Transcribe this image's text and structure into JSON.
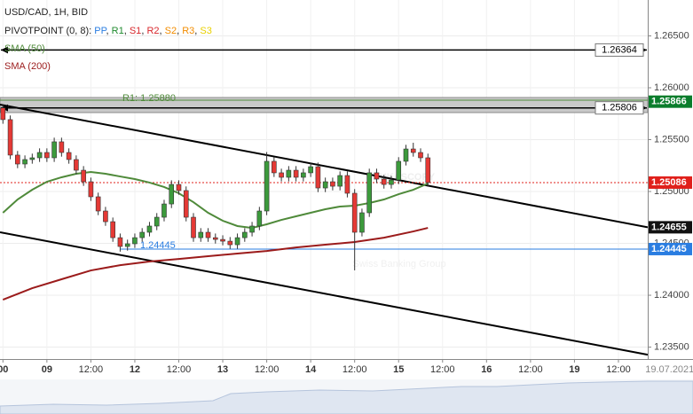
{
  "chart_data": {
    "type": "candlestick",
    "title": "USD/CAD, 1H, BID",
    "pivot_prefix": "PIVOTPOINT (0, 8): ",
    "pivot_names": [
      {
        "name": "PP",
        "color": "#2a7de1"
      },
      {
        "name": "R1",
        "color": "#1f8a2e"
      },
      {
        "name": "S1",
        "color": "#d8262b"
      },
      {
        "name": "R2",
        "color": "#d8262b"
      },
      {
        "name": "S2",
        "color": "#f28c00"
      },
      {
        "name": "R3",
        "color": "#f28c00"
      },
      {
        "name": "S3",
        "color": "#e8d000"
      }
    ],
    "watermark": {
      "title": "DUKASCOPY",
      "subtitle": "Swiss Banking Group"
    },
    "x": [
      -12,
      -10,
      -8,
      -6,
      -4,
      -2,
      0,
      2,
      4,
      6,
      8,
      10,
      12,
      14,
      16,
      18,
      20,
      22,
      24,
      26,
      28,
      30,
      32,
      34,
      36,
      38,
      40,
      42,
      44,
      46,
      48,
      50,
      52,
      54,
      56,
      58,
      60,
      62,
      64,
      66,
      68,
      70,
      72,
      74,
      76,
      78,
      80,
      82,
      84,
      86,
      88,
      90,
      92,
      94,
      96,
      98,
      100,
      102,
      104
    ],
    "open": [
      1.25806,
      1.25693,
      1.25351,
      1.25265,
      1.25308,
      1.25325,
      1.25376,
      1.25325,
      1.25479,
      1.25376,
      1.25308,
      1.25205,
      1.25094,
      1.24949,
      1.24812,
      1.24709,
      1.24555,
      1.2447,
      1.24496,
      1.24555,
      1.24607,
      1.24667,
      1.24752,
      1.2488,
      1.25068,
      1.25009,
      1.24752,
      1.24555,
      1.24607,
      1.24555,
      1.24538,
      1.24521,
      1.24487,
      1.24555,
      1.24607,
      1.24667,
      1.24812,
      1.25291,
      1.2518,
      1.25137,
      1.25205,
      1.25137,
      1.2518,
      1.25239,
      1.25034,
      1.25094,
      1.25051,
      1.25154,
      1.24983,
      1.24607,
      1.24795,
      1.2518,
      1.2512,
      1.25068,
      1.25111,
      1.25291,
      1.2541,
      1.25376,
      1.25325
    ],
    "high": [
      1.2583,
      1.25733,
      1.25391,
      1.25348,
      1.25365,
      1.25416,
      1.25416,
      1.25519,
      1.25519,
      1.25416,
      1.25348,
      1.25245,
      1.25134,
      1.24989,
      1.24852,
      1.24749,
      1.24595,
      1.24536,
      1.24595,
      1.24647,
      1.24707,
      1.24792,
      1.2492,
      1.25108,
      1.25108,
      1.25049,
      1.24792,
      1.24647,
      1.24647,
      1.24595,
      1.24578,
      1.24561,
      1.24595,
      1.24647,
      1.24707,
      1.24852,
      1.2538,
      1.25331,
      1.2522,
      1.25245,
      1.25245,
      1.2522,
      1.25279,
      1.25279,
      1.25134,
      1.25134,
      1.25194,
      1.25194,
      1.25023,
      1.24835,
      1.2522,
      1.2522,
      1.2516,
      1.25151,
      1.25331,
      1.2545,
      1.2547,
      1.25416,
      1.25365
    ],
    "low": [
      1.25653,
      1.25311,
      1.25225,
      1.25225,
      1.25268,
      1.25285,
      1.25285,
      1.25285,
      1.25336,
      1.25268,
      1.25165,
      1.25054,
      1.24909,
      1.24772,
      1.24669,
      1.24515,
      1.2442,
      1.2443,
      1.24456,
      1.24515,
      1.24567,
      1.24627,
      1.24712,
      1.2484,
      1.24969,
      1.24712,
      1.24515,
      1.24515,
      1.24515,
      1.24498,
      1.24481,
      1.24447,
      1.24447,
      1.24515,
      1.24567,
      1.24627,
      1.24772,
      1.2514,
      1.25097,
      1.25097,
      1.25097,
      1.25097,
      1.2514,
      1.24994,
      1.24994,
      1.25011,
      1.25011,
      1.24943,
      1.2424,
      1.24567,
      1.24755,
      1.2508,
      1.25028,
      1.25028,
      1.25071,
      1.25251,
      1.25336,
      1.25285,
      1.25046
    ],
    "close": [
      1.25693,
      1.25351,
      1.25265,
      1.25308,
      1.25325,
      1.25376,
      1.25325,
      1.25479,
      1.25376,
      1.25308,
      1.25205,
      1.25094,
      1.24949,
      1.24812,
      1.24709,
      1.24555,
      1.2447,
      1.24496,
      1.24555,
      1.24607,
      1.24667,
      1.24752,
      1.2488,
      1.25068,
      1.25009,
      1.24752,
      1.24555,
      1.24607,
      1.24555,
      1.24538,
      1.24521,
      1.24487,
      1.24555,
      1.24607,
      1.24667,
      1.24812,
      1.25291,
      1.2518,
      1.25137,
      1.25205,
      1.25137,
      1.2518,
      1.25239,
      1.25034,
      1.25094,
      1.25051,
      1.25154,
      1.24983,
      1.24607,
      1.24795,
      1.2518,
      1.2512,
      1.25068,
      1.25111,
      1.25291,
      1.2541,
      1.25376,
      1.25325,
      1.25086
    ],
    "up_color": "#3c9a3c",
    "down_color": "#e53935",
    "series": [
      {
        "name": "SMA (50)",
        "color": "#4f8a3a",
        "x": [
          -12,
          -8,
          -4,
          0,
          4,
          8,
          12,
          16,
          20,
          24,
          28,
          32,
          36,
          40,
          44,
          48,
          52,
          56,
          60,
          64,
          68,
          72,
          76,
          80,
          84,
          88,
          92,
          96,
          100,
          104
        ],
        "values": [
          1.24795,
          1.24923,
          1.25017,
          1.25094,
          1.25137,
          1.25171,
          1.25188,
          1.25171,
          1.25145,
          1.2512,
          1.25086,
          1.25043,
          1.24983,
          1.24897,
          1.24795,
          1.24718,
          1.24667,
          1.24649,
          1.24684,
          1.24726,
          1.24761,
          1.24795,
          1.24829,
          1.24855,
          1.24863,
          1.24889,
          1.24923,
          1.24974,
          1.25017,
          1.25077
        ]
      },
      {
        "name": "SMA (200)",
        "color": "#9b1b1b",
        "x": [
          -12,
          -4,
          4,
          12,
          20,
          28,
          36,
          44,
          52,
          60,
          68,
          76,
          84,
          92,
          100,
          104
        ],
        "values": [
          1.23957,
          1.24068,
          1.24154,
          1.24239,
          1.2429,
          1.24325,
          1.2435,
          1.24376,
          1.24402,
          1.24427,
          1.24461,
          1.24487,
          1.24513,
          1.24555,
          1.24615,
          1.24649
        ]
      }
    ],
    "trend_lines": [
      {
        "x": [
          -12.8,
          164
        ],
        "values": [
          1.25838,
          1.24655
        ]
      },
      {
        "x": [
          -12.8,
          164
        ],
        "values": [
          1.24607,
          1.23427
        ]
      }
    ],
    "levels": [
      1.26364,
      1.25806
    ],
    "band": [
      1.25906,
      1.25761
    ],
    "pivot_line": {
      "label": "R1: 1.25880",
      "value": 1.2588,
      "color": "#4f8a3a"
    },
    "support": {
      "value": 1.24445,
      "x_start": 20,
      "color": "#2a7de1"
    },
    "price_tags": [
      {
        "value": 1.25866,
        "color": "#0a7d2c"
      },
      {
        "value": 1.25086,
        "color": "#e0201b"
      },
      {
        "value": 1.24655,
        "color": "#111111"
      },
      {
        "value": 1.24445,
        "color": "#2a7de1"
      }
    ],
    "xlim": [
      -12.8,
      164
    ],
    "ylim": [
      1.23385,
      1.26846
    ],
    "xticks": [
      {
        "value": -12,
        "label": "00"
      },
      {
        "value": 0,
        "label": "09"
      },
      {
        "value": 12,
        "label": "12:00"
      },
      {
        "value": 24,
        "label": "12"
      },
      {
        "value": 36,
        "label": "12:00"
      },
      {
        "value": 48,
        "label": "13"
      },
      {
        "value": 60,
        "label": "12:00"
      },
      {
        "value": 72,
        "label": "14"
      },
      {
        "value": 84,
        "label": "12:00"
      },
      {
        "value": 96,
        "label": "15"
      },
      {
        "value": 108,
        "label": "12:00"
      },
      {
        "value": 120,
        "label": "16"
      },
      {
        "value": 132,
        "label": "12:00"
      },
      {
        "value": 144,
        "label": "19"
      },
      {
        "value": 156,
        "label": "12:00"
      },
      {
        "value": 170,
        "label": "19.07.2021"
      }
    ],
    "yticks": [
      {
        "value": 1.235,
        "label": "1.23500"
      },
      {
        "value": 1.24,
        "label": "1.24000"
      },
      {
        "value": 1.245,
        "label": "1.24500"
      },
      {
        "value": 1.25,
        "label": "1.25000"
      },
      {
        "value": 1.255,
        "label": "1.25500"
      },
      {
        "value": 1.26,
        "label": "1.26000"
      },
      {
        "value": 1.265,
        "label": "1.26500"
      }
    ],
    "grid": true
  }
}
